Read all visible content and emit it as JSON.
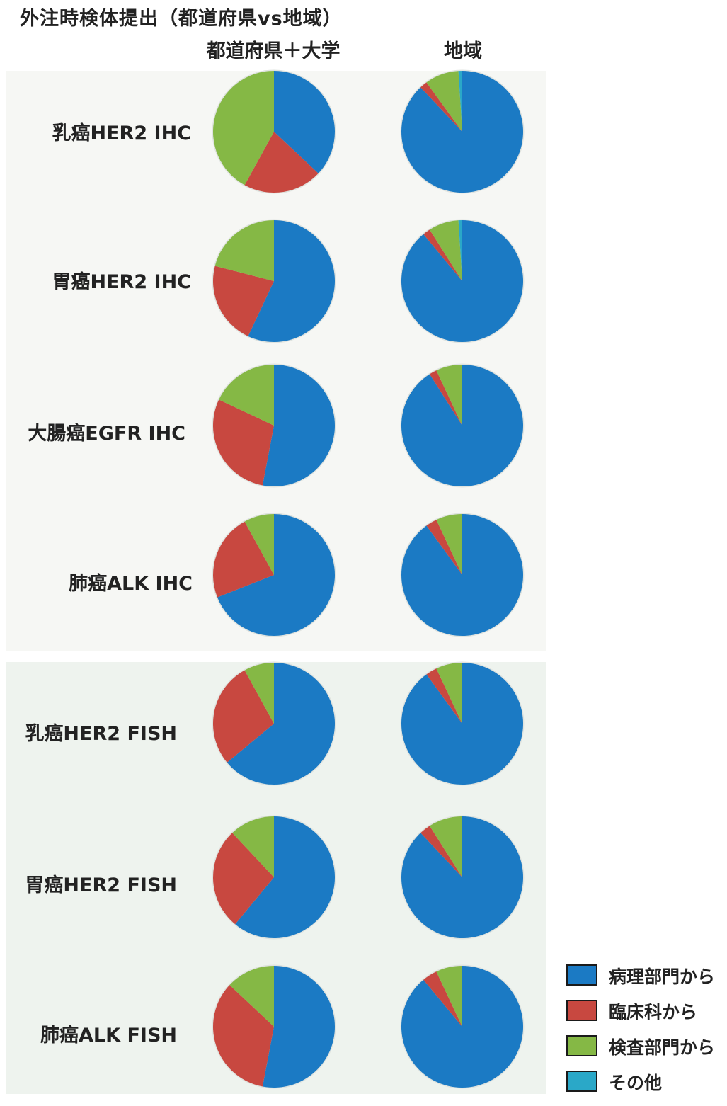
{
  "title": "外注時検体提出（都道府県vs地域）",
  "columns": [
    "都道府県＋大学",
    "地域"
  ],
  "colors": {
    "pathology": "#1b7ac4",
    "clinical": "#c84840",
    "lab": "#85b845",
    "other": "#2aa8c8"
  },
  "legend": [
    {
      "key": "pathology",
      "label": "病理部門から"
    },
    {
      "key": "clinical",
      "label": "臨床科から"
    },
    {
      "key": "lab",
      "label": "検査部門から"
    },
    {
      "key": "other",
      "label": "その他"
    }
  ],
  "chart_data": {
    "type": "pie",
    "title": "外注時検体提出（都道府県vs地域）",
    "groups": [
      "都道府県＋大学",
      "地域"
    ],
    "series_names": [
      "病理部門から",
      "臨床科から",
      "検査部門から",
      "その他"
    ],
    "rows": [
      {
        "label": "乳癌HER2 IHC",
        "values": [
          [
            37,
            21,
            42,
            0
          ],
          [
            88,
            2,
            9,
            1
          ]
        ]
      },
      {
        "label": "胃癌HER2 IHC",
        "values": [
          [
            57,
            22,
            21,
            0
          ],
          [
            89,
            2,
            8,
            1
          ]
        ]
      },
      {
        "label": "大腸癌EGFR IHC",
        "values": [
          [
            53,
            29,
            18,
            0
          ],
          [
            91,
            2,
            7,
            0
          ]
        ]
      },
      {
        "label": "肺癌ALK IHC",
        "values": [
          [
            69,
            23,
            8,
            0
          ],
          [
            90,
            3,
            7,
            0
          ]
        ]
      },
      {
        "label": "乳癌HER2 FISH",
        "values": [
          [
            64,
            28,
            8,
            0
          ],
          [
            90,
            3,
            7,
            0
          ]
        ]
      },
      {
        "label": "胃癌HER2 FISH",
        "values": [
          [
            61,
            27,
            12,
            0
          ],
          [
            88,
            3,
            9,
            0
          ]
        ]
      },
      {
        "label": "肺癌ALK FISH",
        "values": [
          [
            53,
            34,
            13,
            0
          ],
          [
            89,
            4,
            7,
            0
          ]
        ]
      }
    ]
  }
}
